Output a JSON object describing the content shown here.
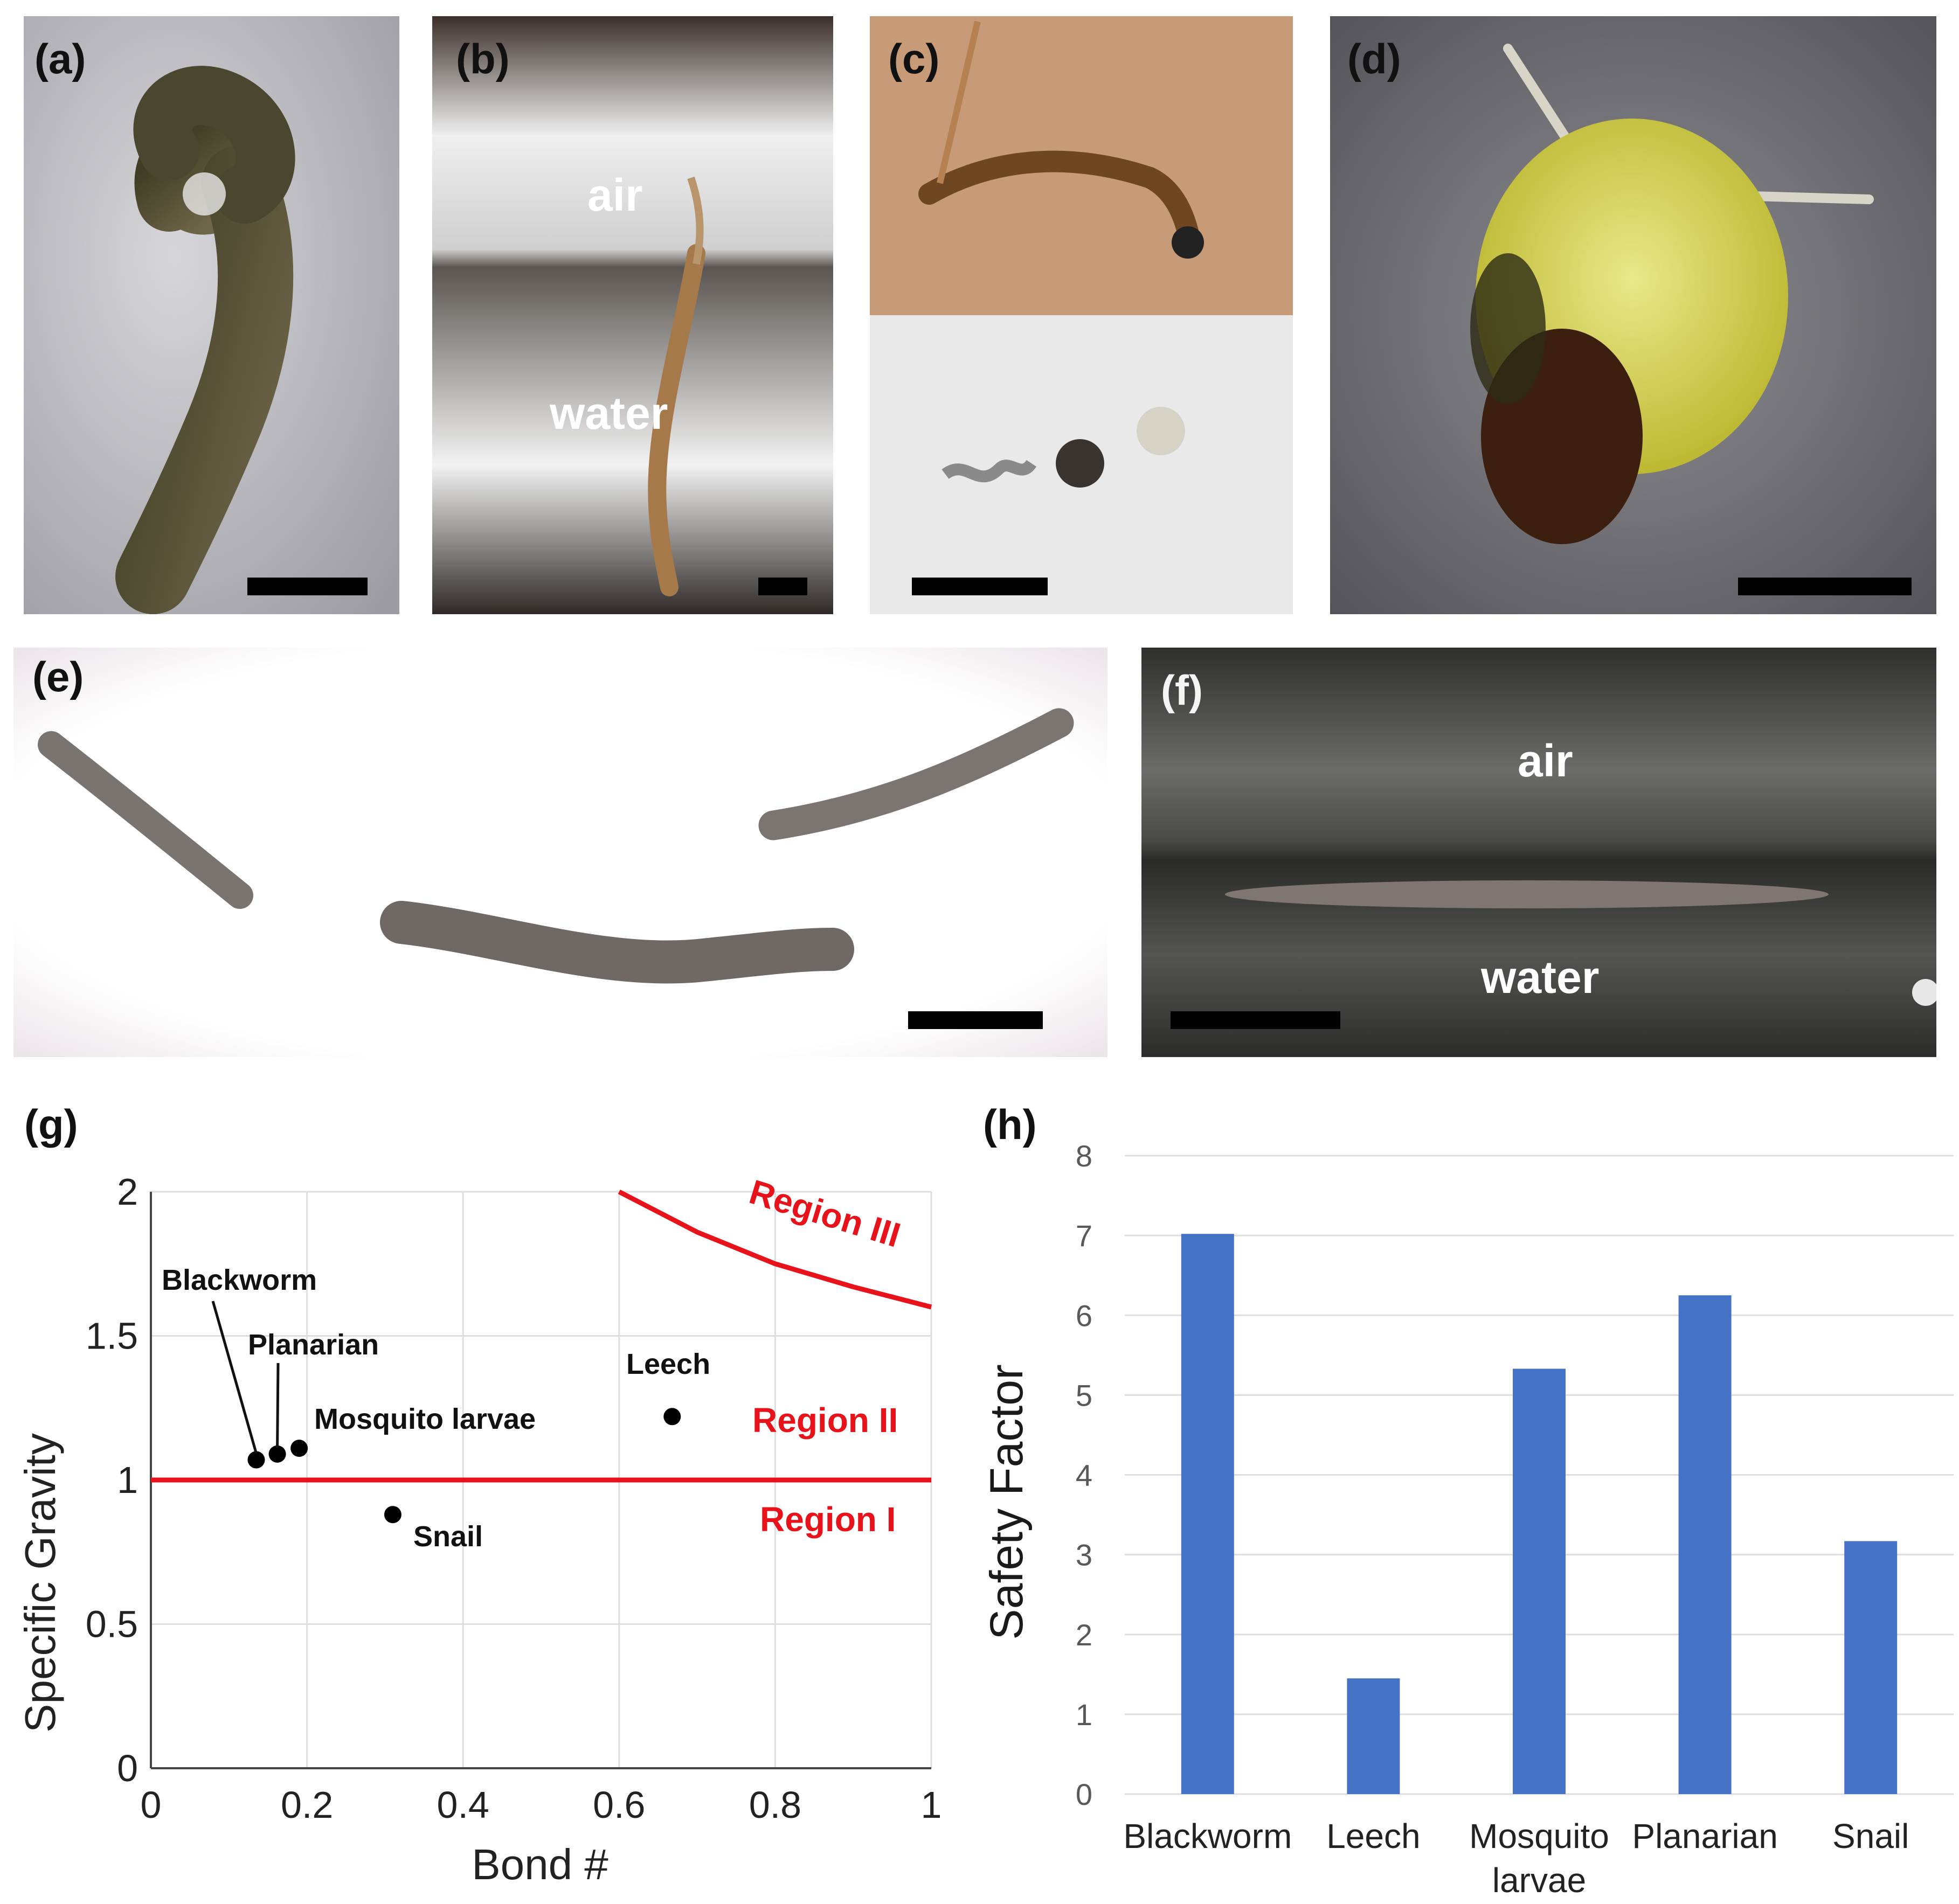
{
  "panels": {
    "a": {
      "label": "(a)"
    },
    "b": {
      "label": "(b)",
      "air": "air",
      "water": "water"
    },
    "c": {
      "label": "(c)"
    },
    "d": {
      "label": "(d)"
    },
    "e": {
      "label": "(e)"
    },
    "f": {
      "label": "(f)",
      "air": "air",
      "water": "water"
    },
    "g": {
      "label": "(g)"
    },
    "h": {
      "label": "(h)"
    }
  },
  "colors": {
    "region_line": "#e8121b",
    "bar": "#4472c4",
    "point": "#000000",
    "grid": "#dedede"
  },
  "chart_data": [
    {
      "type": "scatter",
      "panel": "g",
      "title": "",
      "xlabel": "Bond #",
      "ylabel": "Specific Gravity",
      "xlim": [
        0,
        1
      ],
      "ylim": [
        0,
        2
      ],
      "xticks": [
        0,
        0.2,
        0.4,
        0.6,
        0.8,
        1
      ],
      "xtick_labels": [
        "0",
        "0.2",
        "0.4",
        "0.6",
        "0.8",
        "1"
      ],
      "yticks": [
        0,
        0.5,
        1,
        1.5,
        2
      ],
      "ytick_labels": [
        "0",
        "0.5",
        "1",
        "1.5",
        "2"
      ],
      "grid": true,
      "points": [
        {
          "label": "Blackworm",
          "x": 0.135,
          "y": 1.07
        },
        {
          "label": "Planarian",
          "x": 0.162,
          "y": 1.09
        },
        {
          "label": "Mosquito larvae",
          "x": 0.19,
          "y": 1.11
        },
        {
          "label": "Snail",
          "x": 0.31,
          "y": 0.88
        },
        {
          "label": "Leech",
          "x": 0.668,
          "y": 1.22
        }
      ],
      "boundary_lines": [
        {
          "name": "Region I / Region II boundary",
          "x": [
            0,
            1
          ],
          "y": [
            1,
            1
          ]
        },
        {
          "name": "Region III boundary",
          "x": [
            0.6,
            0.7,
            0.8,
            0.9,
            1.0
          ],
          "y": [
            2.0,
            1.86,
            1.75,
            1.67,
            1.6
          ]
        }
      ],
      "region_labels": [
        "Region III",
        "Region II",
        "Region I"
      ]
    },
    {
      "type": "bar",
      "panel": "h",
      "title": "",
      "xlabel": "",
      "ylabel": "Safety Factor",
      "categories": [
        "Blackworm",
        "Leech",
        "Mosquito larvae",
        "Planarian",
        "Snail"
      ],
      "category_lines": [
        [
          "Blackworm"
        ],
        [
          "Leech"
        ],
        [
          "Mosquito",
          "larvae"
        ],
        [
          "Planarian"
        ],
        [
          "Snail"
        ]
      ],
      "values": [
        7.02,
        1.45,
        5.33,
        6.25,
        3.17
      ],
      "ylim": [
        0,
        8
      ],
      "yticks": [
        0,
        1,
        2,
        3,
        4,
        5,
        6,
        7,
        8
      ],
      "grid": true
    }
  ]
}
